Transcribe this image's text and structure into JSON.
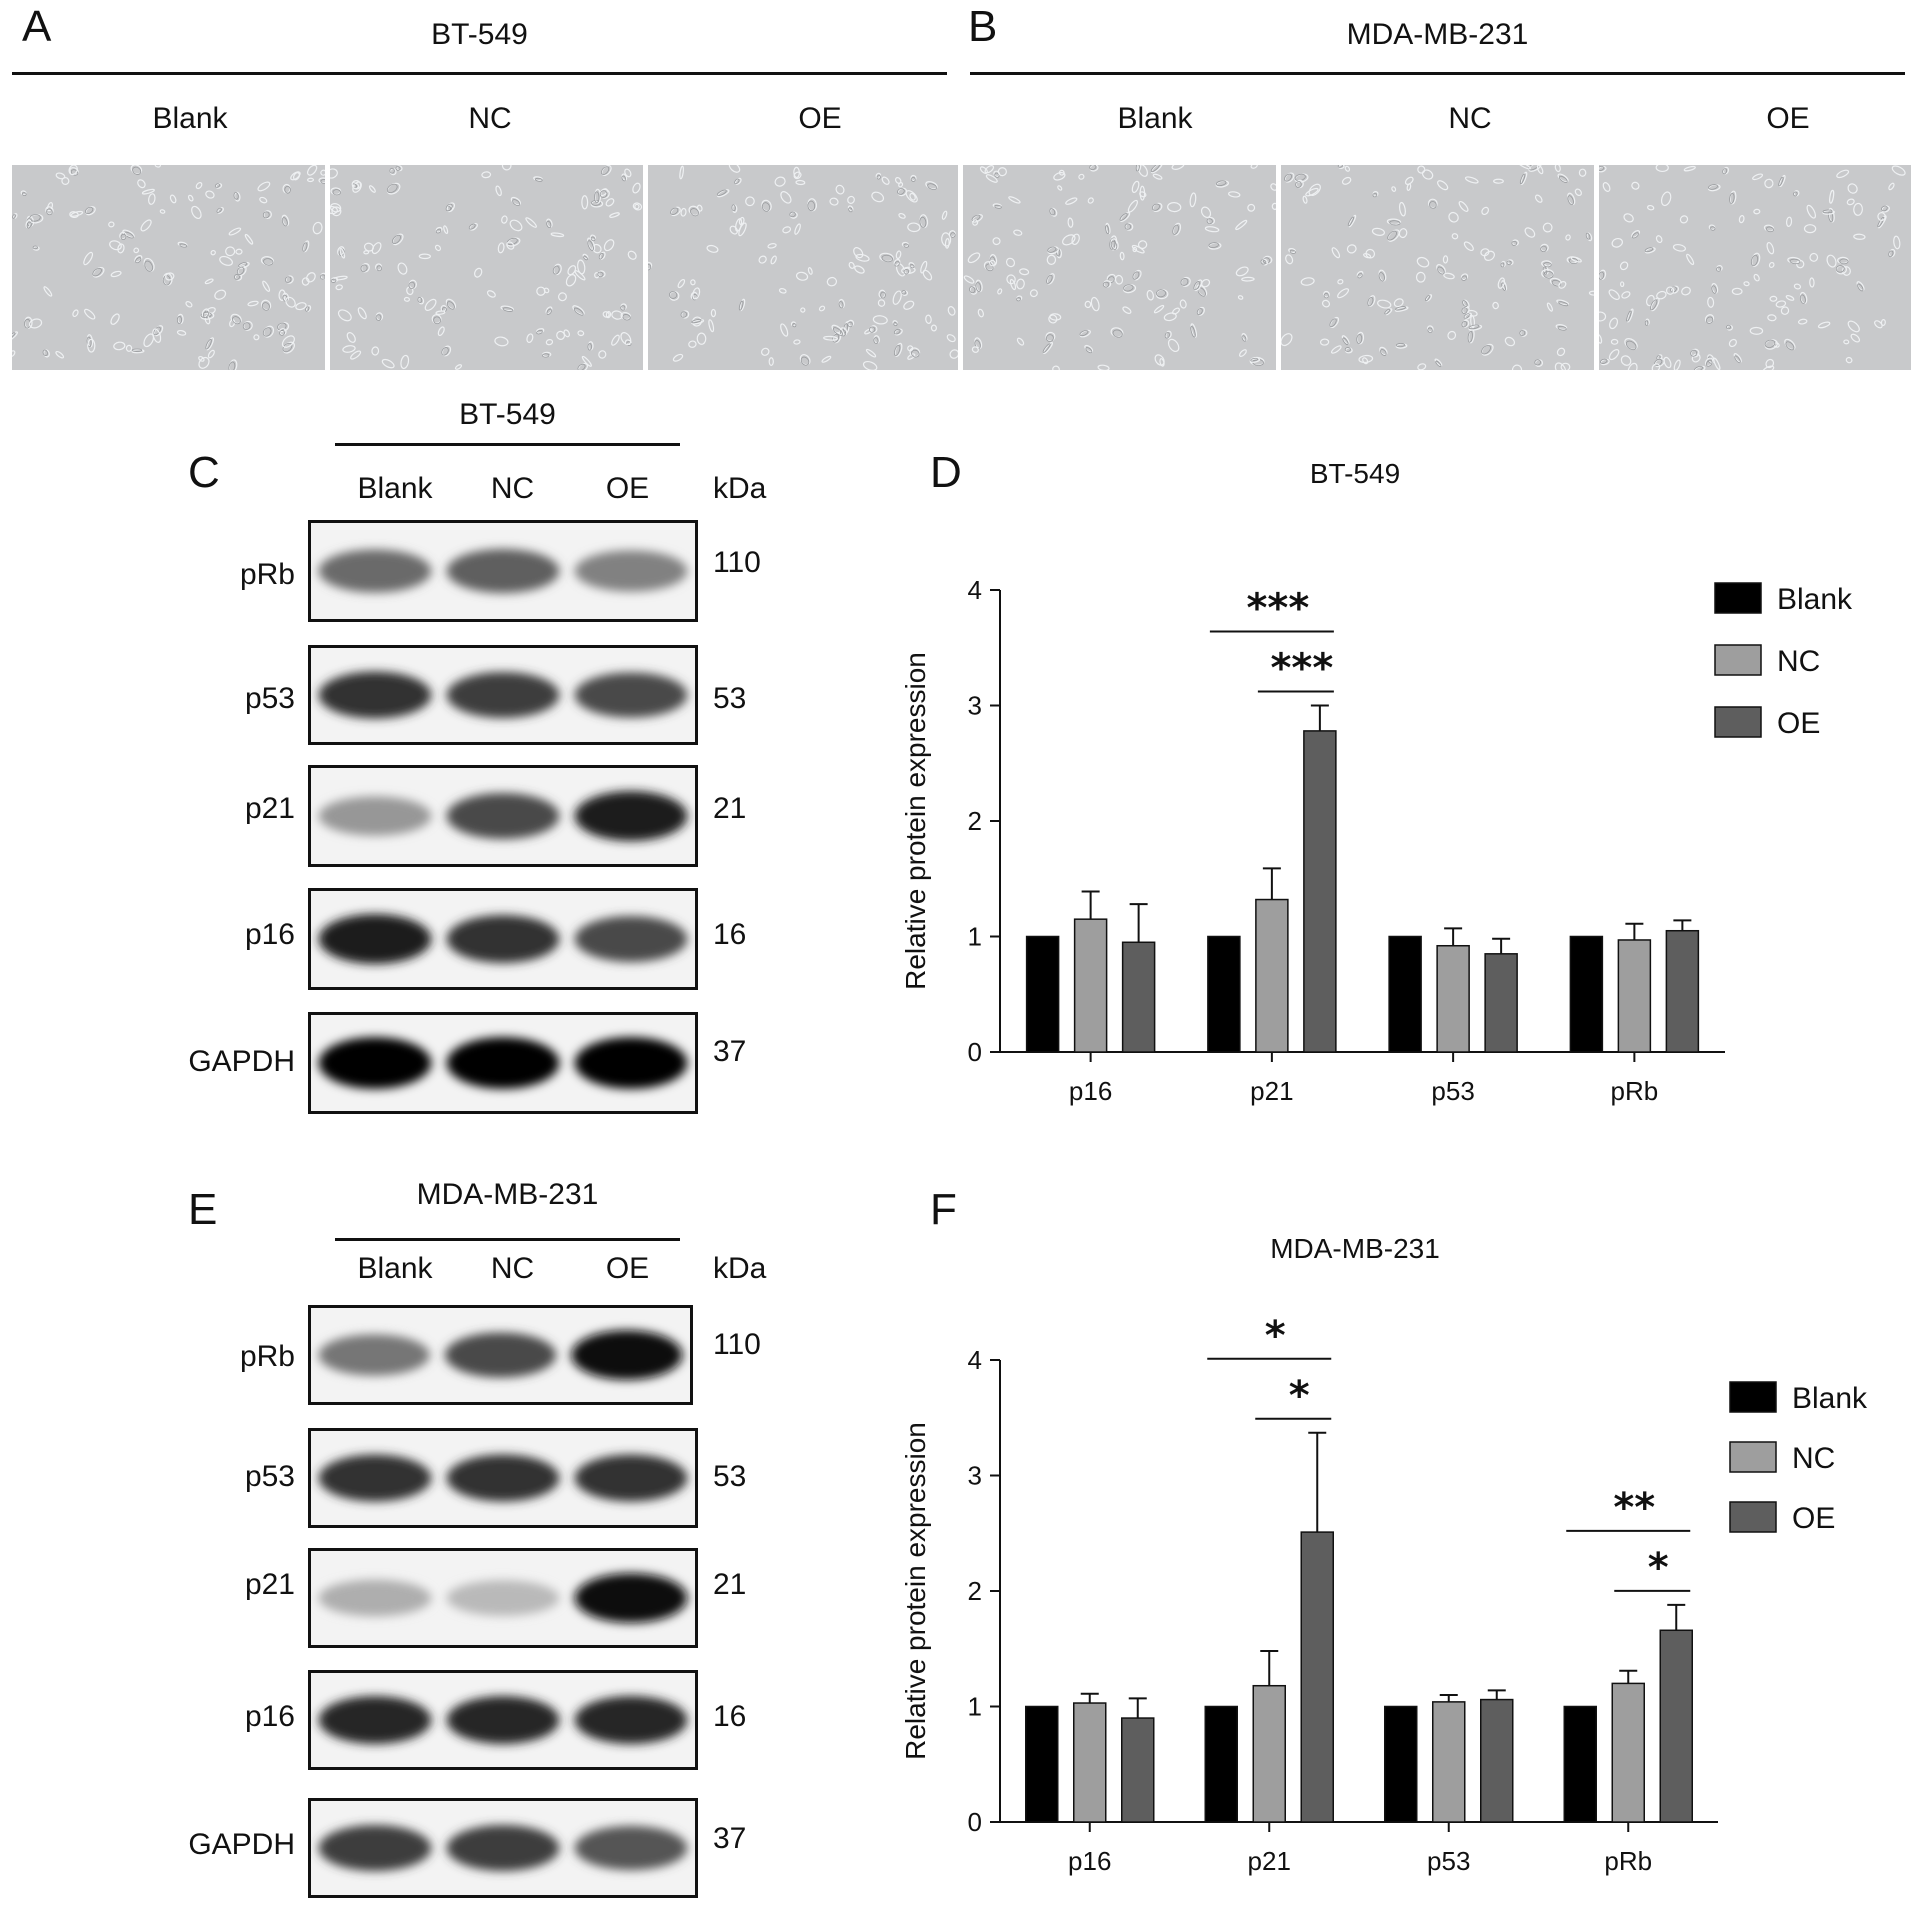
{
  "panel_labels": {
    "a": "A",
    "b": "B",
    "c": "C",
    "d": "D",
    "e": "E",
    "f": "F"
  },
  "panel_a": {
    "cell_line": "BT-549",
    "groups": [
      "Blank",
      "NC",
      "OE"
    ]
  },
  "panel_b": {
    "cell_line": "MDA-MB-231",
    "groups": [
      "Blank",
      "NC",
      "OE"
    ]
  },
  "panel_c": {
    "cell_line": "BT-549",
    "lanes": [
      "Blank",
      "NC",
      "OE"
    ],
    "kda_header": "kDa",
    "proteins": [
      {
        "name": "pRb",
        "kda": "110"
      },
      {
        "name": "p53",
        "kda": "53"
      },
      {
        "name": "p21",
        "kda": "21"
      },
      {
        "name": "p16",
        "kda": "16"
      },
      {
        "name": "GAPDH",
        "kda": "37"
      }
    ]
  },
  "panel_e": {
    "cell_line": "MDA-MB-231",
    "lanes": [
      "Blank",
      "NC",
      "OE"
    ],
    "kda_header": "kDa",
    "proteins": [
      {
        "name": "pRb",
        "kda": "110"
      },
      {
        "name": "p53",
        "kda": "53"
      },
      {
        "name": "p21",
        "kda": "21"
      },
      {
        "name": "p16",
        "kda": "16"
      },
      {
        "name": "GAPDH",
        "kda": "37"
      }
    ]
  },
  "chart_data": [
    {
      "type": "bar",
      "title": "BT-549",
      "ylabel": "Relative protein expression",
      "xlabel": "",
      "ylim": [
        0,
        4
      ],
      "yticks": [
        "0",
        "1",
        "2",
        "3",
        "4"
      ],
      "categories": [
        "p16",
        "p21",
        "p53",
        "pRb"
      ],
      "series": [
        {
          "name": "Blank",
          "color": "#000000",
          "values": [
            1.0,
            1.0,
            1.0,
            1.0
          ],
          "errors": [
            0,
            0,
            0,
            0
          ]
        },
        {
          "name": "NC",
          "color": "#9e9e9e",
          "values": [
            1.15,
            1.32,
            0.92,
            0.97
          ],
          "errors": [
            0.24,
            0.27,
            0.15,
            0.14
          ]
        },
        {
          "name": "OE",
          "color": "#5e5e5e",
          "values": [
            0.95,
            2.78,
            0.85,
            1.05
          ],
          "errors": [
            0.33,
            0.22,
            0.13,
            0.09
          ]
        }
      ],
      "significance": [
        {
          "category": "p21",
          "from": "Blank",
          "to": "OE",
          "label": "***"
        },
        {
          "category": "p21",
          "from": "NC",
          "to": "OE",
          "label": "***"
        }
      ],
      "legend_position": "top-right"
    },
    {
      "type": "bar",
      "title": "MDA-MB-231",
      "ylabel": "Relative protein expression",
      "xlabel": "",
      "ylim": [
        0,
        4
      ],
      "yticks": [
        "0",
        "1",
        "2",
        "3",
        "4"
      ],
      "categories": [
        "p16",
        "p21",
        "p53",
        "pRb"
      ],
      "series": [
        {
          "name": "Blank",
          "color": "#000000",
          "values": [
            1.0,
            1.0,
            1.0,
            1.0
          ],
          "errors": [
            0,
            0,
            0,
            0
          ]
        },
        {
          "name": "NC",
          "color": "#9e9e9e",
          "values": [
            1.03,
            1.18,
            1.04,
            1.2
          ],
          "errors": [
            0.08,
            0.3,
            0.06,
            0.11
          ]
        },
        {
          "name": "OE",
          "color": "#5e5e5e",
          "values": [
            0.9,
            2.51,
            1.06,
            1.66
          ],
          "errors": [
            0.17,
            0.86,
            0.08,
            0.22
          ]
        }
      ],
      "significance": [
        {
          "category": "p21",
          "from": "Blank",
          "to": "OE",
          "label": "*"
        },
        {
          "category": "p21",
          "from": "NC",
          "to": "OE",
          "label": "*"
        },
        {
          "category": "pRb",
          "from": "Blank",
          "to": "OE",
          "label": "**"
        },
        {
          "category": "pRb",
          "from": "NC",
          "to": "OE",
          "label": "*"
        }
      ],
      "legend_position": "top-right"
    }
  ]
}
